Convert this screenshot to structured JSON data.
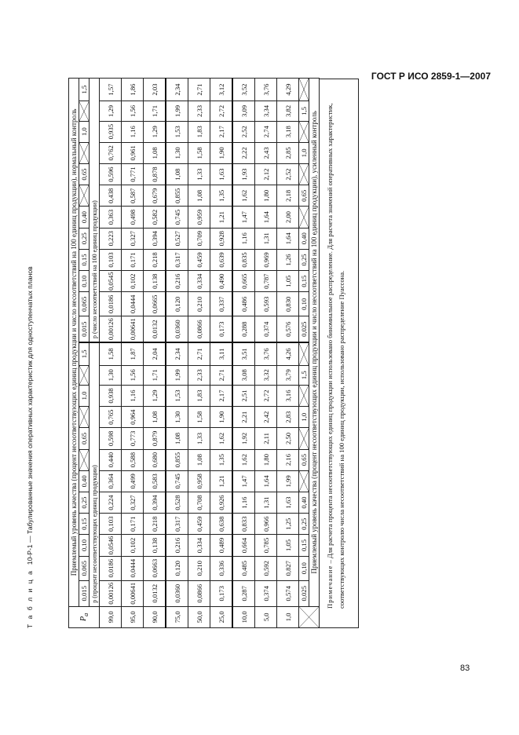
{
  "header": {
    "doc_id": "ГОСТ Р ИСО 2859-1—2007"
  },
  "page_number": "83",
  "caption": {
    "label": "Т а б л и ц а",
    "text": "10-Р-1 — Табулированные значения оперативных характеристик  для одноступенчатых планов"
  },
  "table": {
    "pa_label": "P",
    "pa_sub": "a",
    "normal_title": "Приемлемый уровень качества (процент несоответствующих единиц продукции и число несоответствий на 100 единиц продукции), нормальный контроль",
    "tightened_title": "Приемлемый уровень качества (процент несоответствующих единиц продукции и число несоответствий на 100 единиц продукции), усиленный контроль",
    "p_label_percent": "p (процент несоответствующих единиц продукции)",
    "p_label_per100": "p (число несоответствий на 100 единиц продукции)",
    "normal_aql": [
      "0,015",
      "0,065",
      "0,10",
      "0,15",
      "0,25",
      "0,40",
      null,
      "0,65",
      null,
      "1,0",
      null,
      "1,5"
    ],
    "tightened_aql": [
      "0,025",
      "0,10",
      "0,15",
      "0,25",
      "0,40",
      null,
      "0,65",
      null,
      "1,0",
      null,
      "1,5",
      null
    ],
    "rows": [
      {
        "pa": "99,0",
        "percent": [
          "0,00126",
          "0,0186",
          "0,0546",
          "0,103",
          "0,224",
          "0,364",
          "0,440",
          "0,598",
          "0,765",
          "0,938",
          "1,30",
          "1,58"
        ],
        "per100": [
          "0,00126",
          "0,0186",
          "0,0545",
          "0,103",
          "0,223",
          "0,363",
          "0,438",
          "0,596",
          "0,762",
          "0,935",
          "1,29",
          "1,57"
        ]
      },
      {
        "pa": "95,0",
        "percent": [
          "0,00641",
          "0,0444",
          "0,102",
          "0,171",
          "0,327",
          "0,499",
          "0,588",
          "0,773",
          "0,964",
          "1,16",
          "1,56",
          "1,87"
        ],
        "per100": [
          "0,00641",
          "0,0444",
          "0,102",
          "0,171",
          "0,327",
          "0,498",
          "0,587",
          "0,771",
          "0,961",
          "1,16",
          "1,56",
          "1,86"
        ]
      },
      {
        "pa": "90,0",
        "percent": [
          "0,0132",
          "0,0663",
          "0,138",
          "0,218",
          "0,394",
          "0,583",
          "0,680",
          "0,879",
          "1,08",
          "1,29",
          "1,71",
          "2,04"
        ],
        "per100": [
          "0,0132",
          "0,0665",
          "0,138",
          "0,218",
          "0,394",
          "0,582",
          "0,679",
          "0,878",
          "1,08",
          "1,29",
          "1,71",
          "2,03"
        ]
      },
      {
        "pa": "75,0",
        "percent": [
          "0,0360",
          "0,120",
          "0,216",
          "0,317",
          "0,528",
          "0,745",
          "0,855",
          "1,08",
          "1,30",
          "1,53",
          "1,99",
          "2,34"
        ],
        "per100": [
          "0,0360",
          "0,120",
          "0,216",
          "0,317",
          "0,527",
          "0,745",
          "0,855",
          "1,08",
          "1,30",
          "1,53",
          "1,99",
          "2,34"
        ]
      },
      {
        "pa": "50,0",
        "percent": [
          "0,0866",
          "0,210",
          "0,334",
          "0,459",
          "0,708",
          "0,958",
          "1,08",
          "1,33",
          "1,58",
          "1,83",
          "2,33",
          "2,71"
        ],
        "per100": [
          "0,0866",
          "0,210",
          "0,334",
          "0,459",
          "0,709",
          "0,959",
          "1,08",
          "1,33",
          "1,58",
          "1,83",
          "2,33",
          "2,71"
        ]
      },
      {
        "pa": "25,0",
        "percent": [
          "0,173",
          "0,336",
          "0,489",
          "0,638",
          "0,926",
          "1,21",
          "1,35",
          "1,62",
          "1,90",
          "2,17",
          "2,71",
          "3,11"
        ],
        "per100": [
          "0,173",
          "0,337",
          "0,490",
          "0,639",
          "0,928",
          "1,21",
          "1,35",
          "1,63",
          "1,90",
          "2,17",
          "2,72",
          "3,12"
        ]
      },
      {
        "pa": "10,0",
        "percent": [
          "0,287",
          "0,485",
          "0,664",
          "0,833",
          "1,16",
          "1,47",
          "1,62",
          "1,92",
          "2,21",
          "2,51",
          "3,08",
          "3,51"
        ],
        "per100": [
          "0,288",
          "0,486",
          "0,665",
          "0,835",
          "1,16",
          "1,47",
          "1,62",
          "1,93",
          "2,22",
          "2,52",
          "3,09",
          "3,52"
        ]
      },
      {
        "pa": "5,0",
        "percent": [
          "0,374",
          "0,592",
          "0,785",
          "0,966",
          "1,31",
          "1,64",
          "1,80",
          "2,11",
          "2,42",
          "2,72",
          "3,32",
          "3,76"
        ],
        "per100": [
          "0,374",
          "0,593",
          "0,787",
          "0,969",
          "1,31",
          "1,64",
          "1,80",
          "2,12",
          "2,43",
          "2,74",
          "3,34",
          "3,76"
        ]
      },
      {
        "pa": "1,0",
        "percent": [
          "0,574",
          "0,827",
          "1,05",
          "1,25",
          "1,63",
          "1,99",
          "2,16",
          "2,50",
          "2,83",
          "3,16",
          "3,79",
          "4,26"
        ],
        "per100": [
          "0,576",
          "0,830",
          "1,05",
          "1,26",
          "1,64",
          "2,00",
          "2,18",
          "2,52",
          "2,85",
          "3,18",
          "3,82",
          "4,29"
        ]
      }
    ]
  },
  "note": {
    "label": "Примечание",
    "text": " – Для расчета процента несоответствующих единиц продукции использовано биномиальное распределение. Для расчета значений оперативных характеристик, соответствующих контролю числа несоответствий на 100 единиц продукции, использовано распределение Пуассона."
  }
}
